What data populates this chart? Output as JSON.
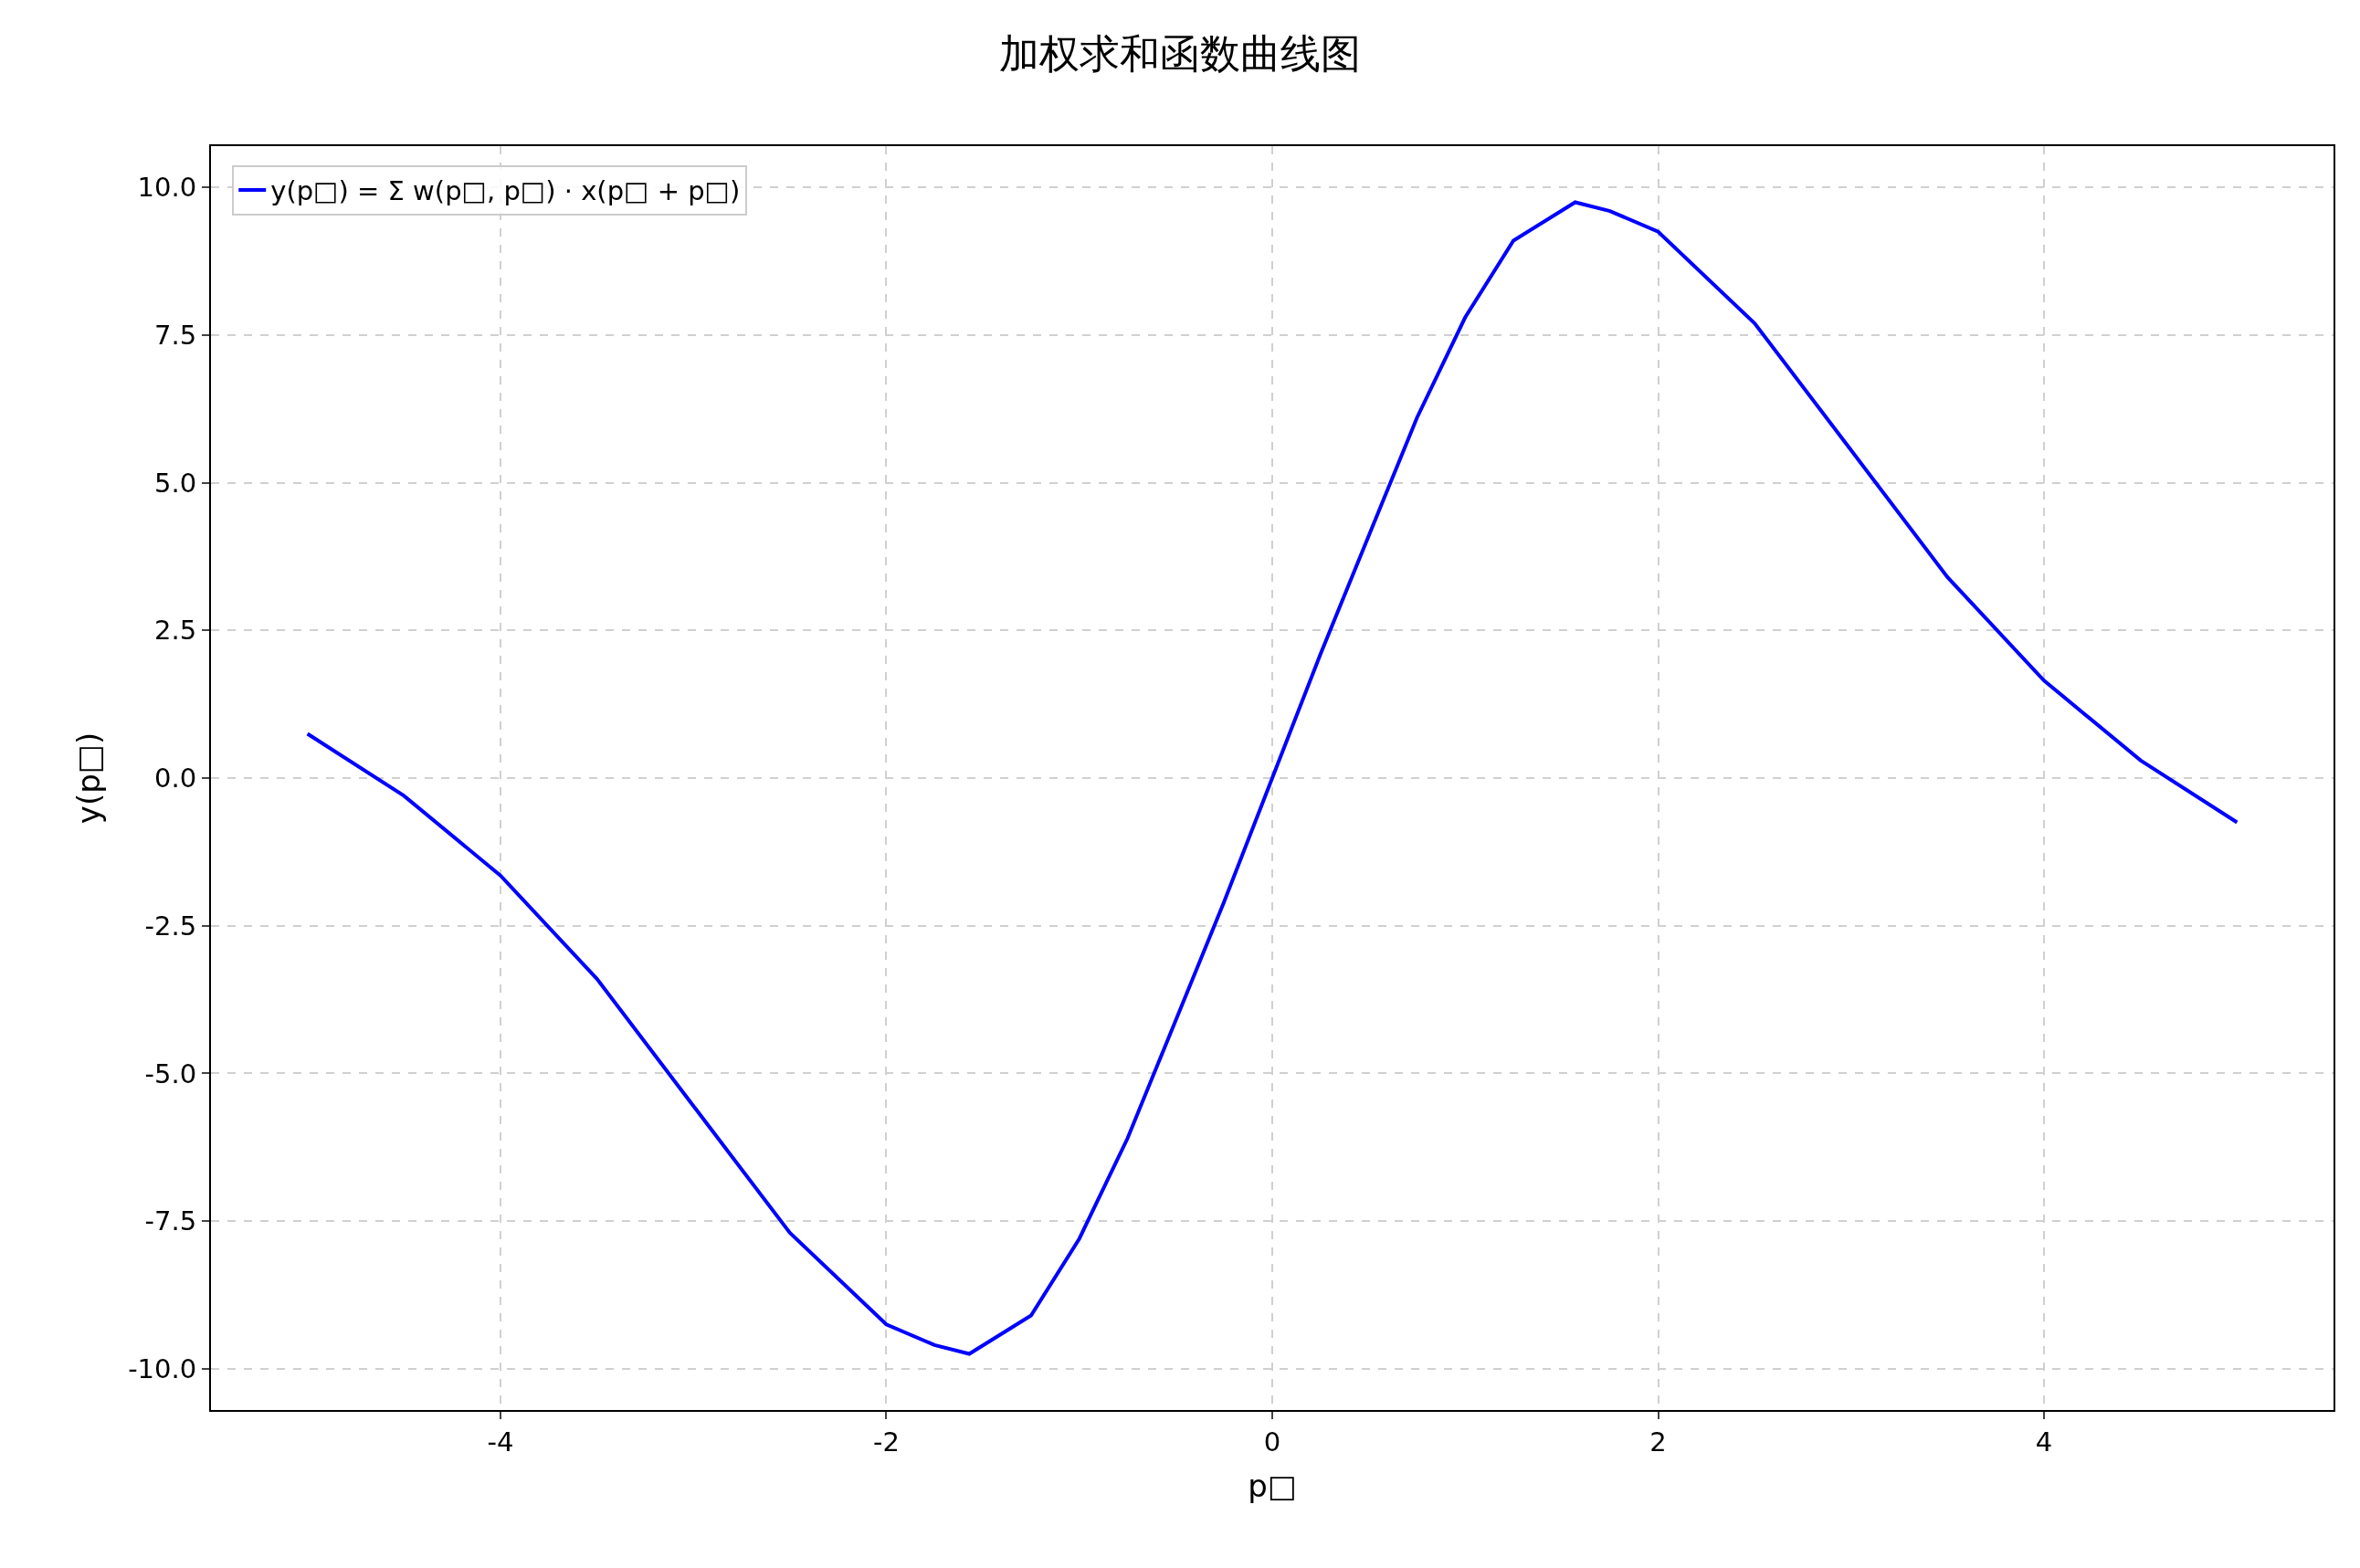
{
  "chart_data": {
    "type": "line",
    "title": "加权求和函数曲线图",
    "xlabel": "p□",
    "ylabel": "y(p□)",
    "x": [
      -5,
      -4.5,
      -4,
      -3.5,
      -3,
      -2.5,
      -2,
      -1.75,
      -1.57,
      -1.25,
      -1,
      -0.75,
      -0.5,
      -0.25,
      0,
      0.25,
      0.5,
      0.75,
      1,
      1.25,
      1.57,
      1.75,
      2,
      2.5,
      3,
      3.5,
      4,
      4.5,
      5
    ],
    "series": [
      {
        "name": "y(p□) = Σ w(p□, p□) · x(p□ + p□)",
        "color": "#0000ff",
        "values": [
          0.75,
          -0.3,
          -1.65,
          -3.4,
          -5.55,
          -7.7,
          -9.25,
          -9.6,
          -9.75,
          -9.1,
          -7.8,
          -6.1,
          -4.1,
          -2.1,
          0,
          2.1,
          4.1,
          6.1,
          7.8,
          9.1,
          9.75,
          9.6,
          9.25,
          7.7,
          5.55,
          3.4,
          1.65,
          0.3,
          -0.75
        ]
      }
    ],
    "xlim": [
      -5.5,
      5.5
    ],
    "ylim": [
      -10.7,
      10.7
    ],
    "xticks": [
      -4,
      -2,
      0,
      2,
      4
    ],
    "yticks": [
      {
        "value": -10,
        "label": "-10.0"
      },
      {
        "value": -7.5,
        "label": "-7.5"
      },
      {
        "value": -5,
        "label": "-5.0"
      },
      {
        "value": -2.5,
        "label": "-2.5"
      },
      {
        "value": 0,
        "label": "0.0"
      },
      {
        "value": 2.5,
        "label": "2.5"
      },
      {
        "value": 5,
        "label": "5.0"
      },
      {
        "value": 7.5,
        "label": "7.5"
      },
      {
        "value": 10,
        "label": "10.0"
      }
    ],
    "grid": true,
    "legend": "top left",
    "line_style": "solid",
    "marker": "none"
  }
}
